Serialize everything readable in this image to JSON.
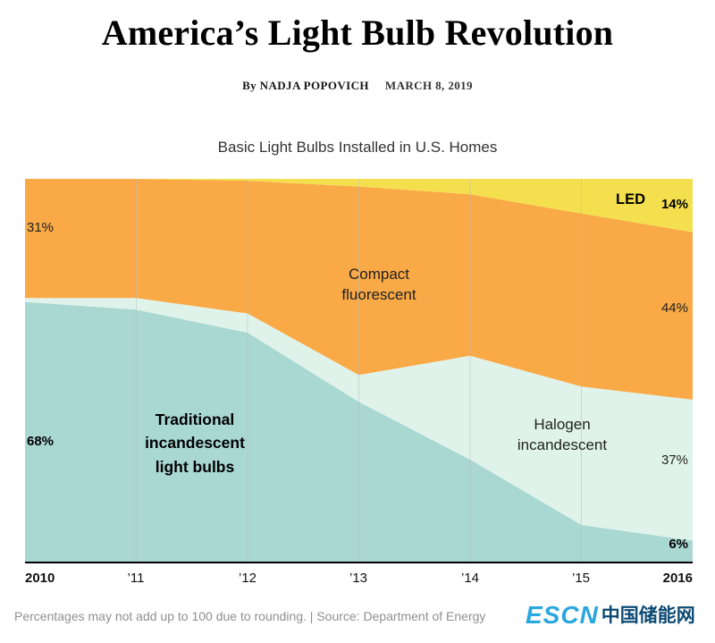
{
  "page": {
    "title": "America’s Light Bulb Revolution",
    "byline_by": "By NADJA POPOVICH",
    "byline_date": "MARCH 8, 2019",
    "footnote": "Percentages may not add up to 100 due to rounding. | Source: Department of Energy"
  },
  "watermark": {
    "latin": "ESCN",
    "cjk": "中国储能网"
  },
  "chart_data": {
    "type": "area",
    "stacked": true,
    "title": "Basic Light Bulbs Installed in U.S. Homes",
    "unit": "percent of light bulbs installed",
    "ylim": [
      0,
      100
    ],
    "grid": "vertical-year-lines",
    "x": [
      2010,
      2011,
      2012,
      2013,
      2014,
      2015,
      2016
    ],
    "x_tick_labels": [
      "2010",
      "’11",
      "’12",
      "’13",
      "’14",
      "’15",
      "2016"
    ],
    "series": [
      {
        "id": "traditional",
        "name": "Traditional incandescent light bulbs",
        "color": "#a9d7d2",
        "values": [
          68,
          66,
          60,
          42,
          27,
          10,
          6
        ]
      },
      {
        "id": "halogen",
        "name": "Halogen incandescent",
        "color": "#dff3eb",
        "values": [
          1,
          3,
          5,
          7,
          27,
          36,
          37
        ]
      },
      {
        "id": "cfl",
        "name": "Compact fluorescent",
        "color": "#f9a946",
        "values": [
          31,
          31,
          34.5,
          49,
          42,
          45,
          44
        ]
      },
      {
        "id": "led",
        "name": "LED",
        "color": "#f4e04e",
        "values": [
          0,
          0,
          0.5,
          2,
          4,
          9,
          14
        ]
      }
    ],
    "annotations": {
      "pct_cfl_left": "31%",
      "pct_trad_left": "68%",
      "traditional_label": "Traditional\nincandescent\nlight bulbs",
      "cfl_label": "Compact\nfluorescent",
      "halogen_label": "Halogen\nincandescent",
      "led_label": "LED",
      "pct_led_right": "14%",
      "pct_cfl_right": "44%",
      "pct_halogen_right": "37%",
      "pct_trad_right": "6%"
    }
  }
}
